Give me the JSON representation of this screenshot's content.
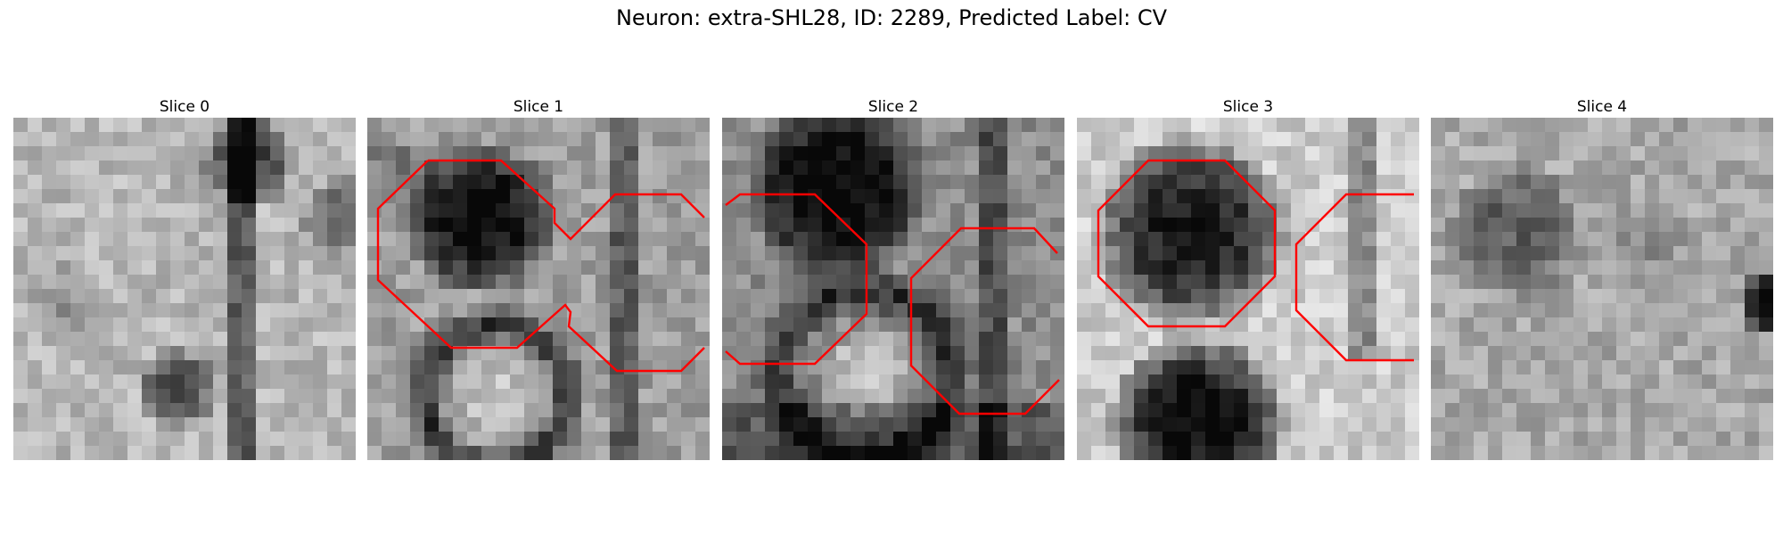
{
  "figure": {
    "title": "Neuron: extra-SHL28, ID: 2289, Predicted Label: CV",
    "contour_color": "#ff0000",
    "colormap": "gray"
  },
  "panels": [
    {
      "title": "Slice 0"
    },
    {
      "title": "Slice 1"
    },
    {
      "title": "Slice 2"
    },
    {
      "title": "Slice 3"
    },
    {
      "title": "Slice 4"
    }
  ]
}
